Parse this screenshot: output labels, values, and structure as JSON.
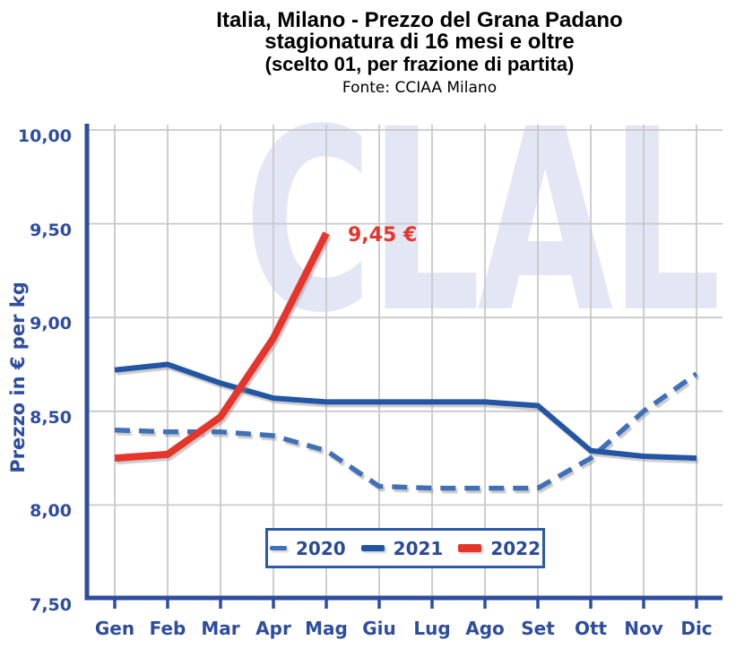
{
  "header": {
    "title_line1": "Italia, Milano - Prezzo del Grana Padano",
    "title_line2": "stagionatura di 16 mesi e oltre",
    "title_line3": "(scelto 01, per frazione di partita)",
    "source": "Fonte: CCIAA Milano"
  },
  "colors": {
    "axis": "#2E4D9E",
    "tick_text": "#2E4D9E",
    "grid": "#C9C9C9",
    "legend_border": "#2B5AA8",
    "legend_text": "#2B4A96",
    "annotation": "#E6352B",
    "watermark": "#E3E6F4"
  },
  "chart_data": {
    "type": "line",
    "title": "Italia, Milano - Prezzo del Grana Padano stagionatura di 16 mesi e oltre (scelto 01, per frazione di partita)",
    "subtitle": "Fonte: CCIAA Milano",
    "xlabel": "",
    "ylabel": "Prezzo in € per kg",
    "ylim": [
      7.5,
      10.0
    ],
    "ytick_step": 0.5,
    "ytick_labels": [
      "7,50",
      "8,00",
      "8,50",
      "9,00",
      "9,50",
      "10,00"
    ],
    "categories": [
      "Gen",
      "Feb",
      "Mar",
      "Apr",
      "Mag",
      "Giu",
      "Lug",
      "Ago",
      "Set",
      "Ott",
      "Nov",
      "Dic"
    ],
    "grid": true,
    "legend_position": "bottom-center",
    "watermark": "CLAL",
    "series": [
      {
        "name": "2020",
        "style": "dashed",
        "color": "#4070B8",
        "stroke_width": 5.5,
        "legend_marker": {
          "w": 19,
          "h": 5
        },
        "values": [
          8.4,
          8.39,
          8.39,
          8.37,
          8.29,
          8.1,
          8.09,
          8.09,
          8.09,
          8.25,
          8.5,
          8.7
        ]
      },
      {
        "name": "2021",
        "style": "solid",
        "color": "#2154A3",
        "stroke_width": 6,
        "legend_marker": {
          "w": 26,
          "h": 6.5
        },
        "values": [
          8.72,
          8.75,
          8.65,
          8.57,
          8.55,
          8.55,
          8.55,
          8.55,
          8.53,
          8.29,
          8.26,
          8.25
        ]
      },
      {
        "name": "2022",
        "style": "solid",
        "color": "#E6352B",
        "stroke_width": 8,
        "legend_marker": {
          "w": 26,
          "h": 8.5
        },
        "values": [
          8.25,
          8.27,
          8.47,
          8.89,
          9.45
        ]
      }
    ],
    "annotation": {
      "text": "9,45 €",
      "series": "2022",
      "x": "Mag",
      "value": 9.45
    }
  }
}
